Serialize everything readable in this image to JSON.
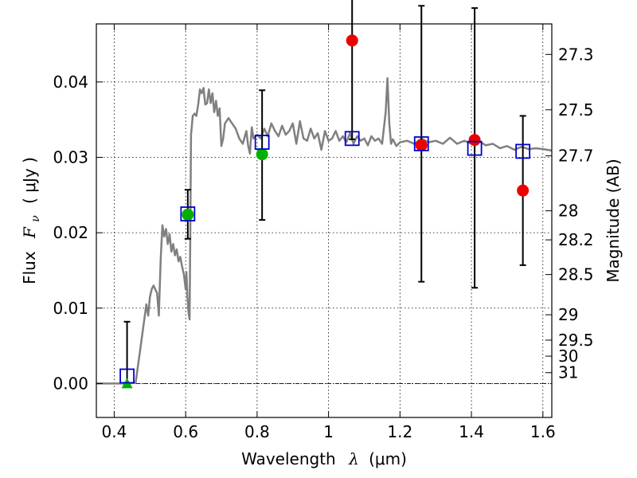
{
  "chart_data": {
    "type": "scatter",
    "xlabel": {
      "prefix": "Wavelength",
      "symbol": "λ",
      "unit": "(μm)"
    },
    "ylabel": {
      "prefix": "Flux",
      "symbol": "F",
      "subscript": "ν",
      "unit": "( μJy )"
    },
    "y2label": "Magnitude (AB)",
    "xlim": [
      0.35,
      1.625
    ],
    "ylim": [
      -0.0045,
      0.0477
    ],
    "grid": true,
    "x_ticks": [
      {
        "value": 0.4,
        "label": "0.4"
      },
      {
        "value": 0.6,
        "label": "0.6"
      },
      {
        "value": 0.8,
        "label": "0.8"
      },
      {
        "value": 1.0,
        "label": "1"
      },
      {
        "value": 1.2,
        "label": "1.2"
      },
      {
        "value": 1.4,
        "label": "1.4"
      },
      {
        "value": 1.6,
        "label": "1.6"
      }
    ],
    "y_ticks": [
      {
        "value": 0.0,
        "label": "0.00"
      },
      {
        "value": 0.01,
        "label": "0.01"
      },
      {
        "value": 0.02,
        "label": "0.02"
      },
      {
        "value": 0.03,
        "label": "0.03"
      },
      {
        "value": 0.04,
        "label": "0.04"
      }
    ],
    "magnitude_ticks": [
      {
        "mag": 27.3,
        "label": "27.3"
      },
      {
        "mag": 27.5,
        "label": "27.5"
      },
      {
        "mag": 27.7,
        "label": "27.7"
      },
      {
        "mag": 28,
        "label": "28"
      },
      {
        "mag": 28.2,
        "label": "28.2"
      },
      {
        "mag": 28.5,
        "label": "28.5"
      },
      {
        "mag": 29,
        "label": "29"
      },
      {
        "mag": 29.5,
        "label": "29.5"
      },
      {
        "mag": 30,
        "label": "30"
      },
      {
        "mag": 31,
        "label": "31"
      }
    ],
    "magnitude_zero_point": 23.9,
    "colors": {
      "model": "#808080",
      "model_points": "#0000cc",
      "detections": "#00b000",
      "nir": "#ee0000",
      "errorbars": "#000000"
    },
    "model_spectrum": {
      "x": [
        0.35,
        0.44,
        0.46,
        0.47,
        0.48,
        0.49,
        0.495,
        0.5,
        0.505,
        0.51,
        0.515,
        0.52,
        0.525,
        0.53,
        0.535,
        0.54,
        0.545,
        0.55,
        0.555,
        0.56,
        0.565,
        0.57,
        0.575,
        0.58,
        0.585,
        0.59,
        0.595,
        0.6,
        0.602,
        0.605,
        0.608,
        0.611,
        0.613,
        0.615,
        0.62,
        0.625,
        0.63,
        0.635,
        0.64,
        0.645,
        0.65,
        0.655,
        0.66,
        0.665,
        0.67,
        0.675,
        0.68,
        0.685,
        0.69,
        0.695,
        0.7,
        0.705,
        0.71,
        0.72,
        0.73,
        0.74,
        0.75,
        0.76,
        0.77,
        0.775,
        0.78,
        0.785,
        0.79,
        0.8,
        0.81,
        0.82,
        0.83,
        0.84,
        0.85,
        0.86,
        0.87,
        0.88,
        0.89,
        0.9,
        0.91,
        0.92,
        0.93,
        0.94,
        0.95,
        0.96,
        0.97,
        0.98,
        0.99,
        1.0,
        1.01,
        1.02,
        1.03,
        1.04,
        1.05,
        1.06,
        1.07,
        1.08,
        1.09,
        1.1,
        1.11,
        1.12,
        1.13,
        1.14,
        1.15,
        1.16,
        1.165,
        1.17,
        1.175,
        1.18,
        1.19,
        1.2,
        1.22,
        1.24,
        1.26,
        1.28,
        1.3,
        1.32,
        1.34,
        1.36,
        1.38,
        1.4,
        1.42,
        1.44,
        1.46,
        1.48,
        1.5,
        1.52,
        1.54,
        1.56,
        1.58,
        1.6,
        1.625
      ],
      "y": [
        0.0,
        0.0,
        0.0001,
        0.0035,
        0.007,
        0.0105,
        0.009,
        0.0115,
        0.0125,
        0.013,
        0.0125,
        0.012,
        0.009,
        0.0165,
        0.021,
        0.0195,
        0.0205,
        0.0185,
        0.0198,
        0.0175,
        0.0185,
        0.017,
        0.0178,
        0.0162,
        0.0168,
        0.0155,
        0.0145,
        0.0125,
        0.0148,
        0.0115,
        0.0095,
        0.0085,
        0.02,
        0.033,
        0.0355,
        0.0358,
        0.0355,
        0.037,
        0.039,
        0.0385,
        0.0392,
        0.037,
        0.0372,
        0.039,
        0.0372,
        0.0385,
        0.036,
        0.0375,
        0.0355,
        0.0365,
        0.0315,
        0.0325,
        0.0345,
        0.0352,
        0.0345,
        0.0338,
        0.0325,
        0.0318,
        0.0335,
        0.0315,
        0.0305,
        0.034,
        0.0325,
        0.033,
        0.0325,
        0.0338,
        0.0328,
        0.0345,
        0.0335,
        0.0328,
        0.0342,
        0.033,
        0.0335,
        0.0345,
        0.0318,
        0.0348,
        0.0325,
        0.0322,
        0.0338,
        0.0325,
        0.0332,
        0.031,
        0.0335,
        0.0322,
        0.0325,
        0.0335,
        0.0322,
        0.0328,
        0.032,
        0.0332,
        0.0318,
        0.0328,
        0.0322,
        0.0325,
        0.0316,
        0.0328,
        0.0322,
        0.0325,
        0.0318,
        0.036,
        0.0405,
        0.0345,
        0.0318,
        0.0324,
        0.0315,
        0.032,
        0.0322,
        0.0318,
        0.0325,
        0.032,
        0.0322,
        0.0318,
        0.0326,
        0.0318,
        0.0322,
        0.0318,
        0.0322,
        0.0316,
        0.0318,
        0.0312,
        0.0315,
        0.031,
        0.0314,
        0.0311,
        0.0312,
        0.0311,
        0.0309
      ]
    },
    "model_points": {
      "x": [
        0.436,
        0.606,
        0.814,
        1.066,
        1.26,
        1.409,
        1.544
      ],
      "y": [
        0.001,
        0.0225,
        0.032,
        0.0325,
        0.0318,
        0.0312,
        0.0308
      ]
    },
    "detections": {
      "x": [
        0.606,
        0.814
      ],
      "y": [
        0.0224,
        0.0304
      ],
      "yerr_low": [
        0.0032,
        0.0087
      ],
      "yerr_high": [
        0.0033,
        0.0085
      ]
    },
    "upper_limit": {
      "x": 0.436,
      "y": 0.0,
      "yerr_high": 0.0082
    },
    "nir_points": {
      "x": [
        1.066,
        1.26,
        1.409,
        1.544
      ],
      "y": [
        0.0455,
        0.0316,
        0.0323,
        0.0256
      ],
      "yerr_low": [
        0.0131,
        0.0181,
        0.0196,
        0.0099
      ],
      "yerr_high": [
        0.0095,
        0.0185,
        0.0175,
        0.0099
      ]
    }
  }
}
